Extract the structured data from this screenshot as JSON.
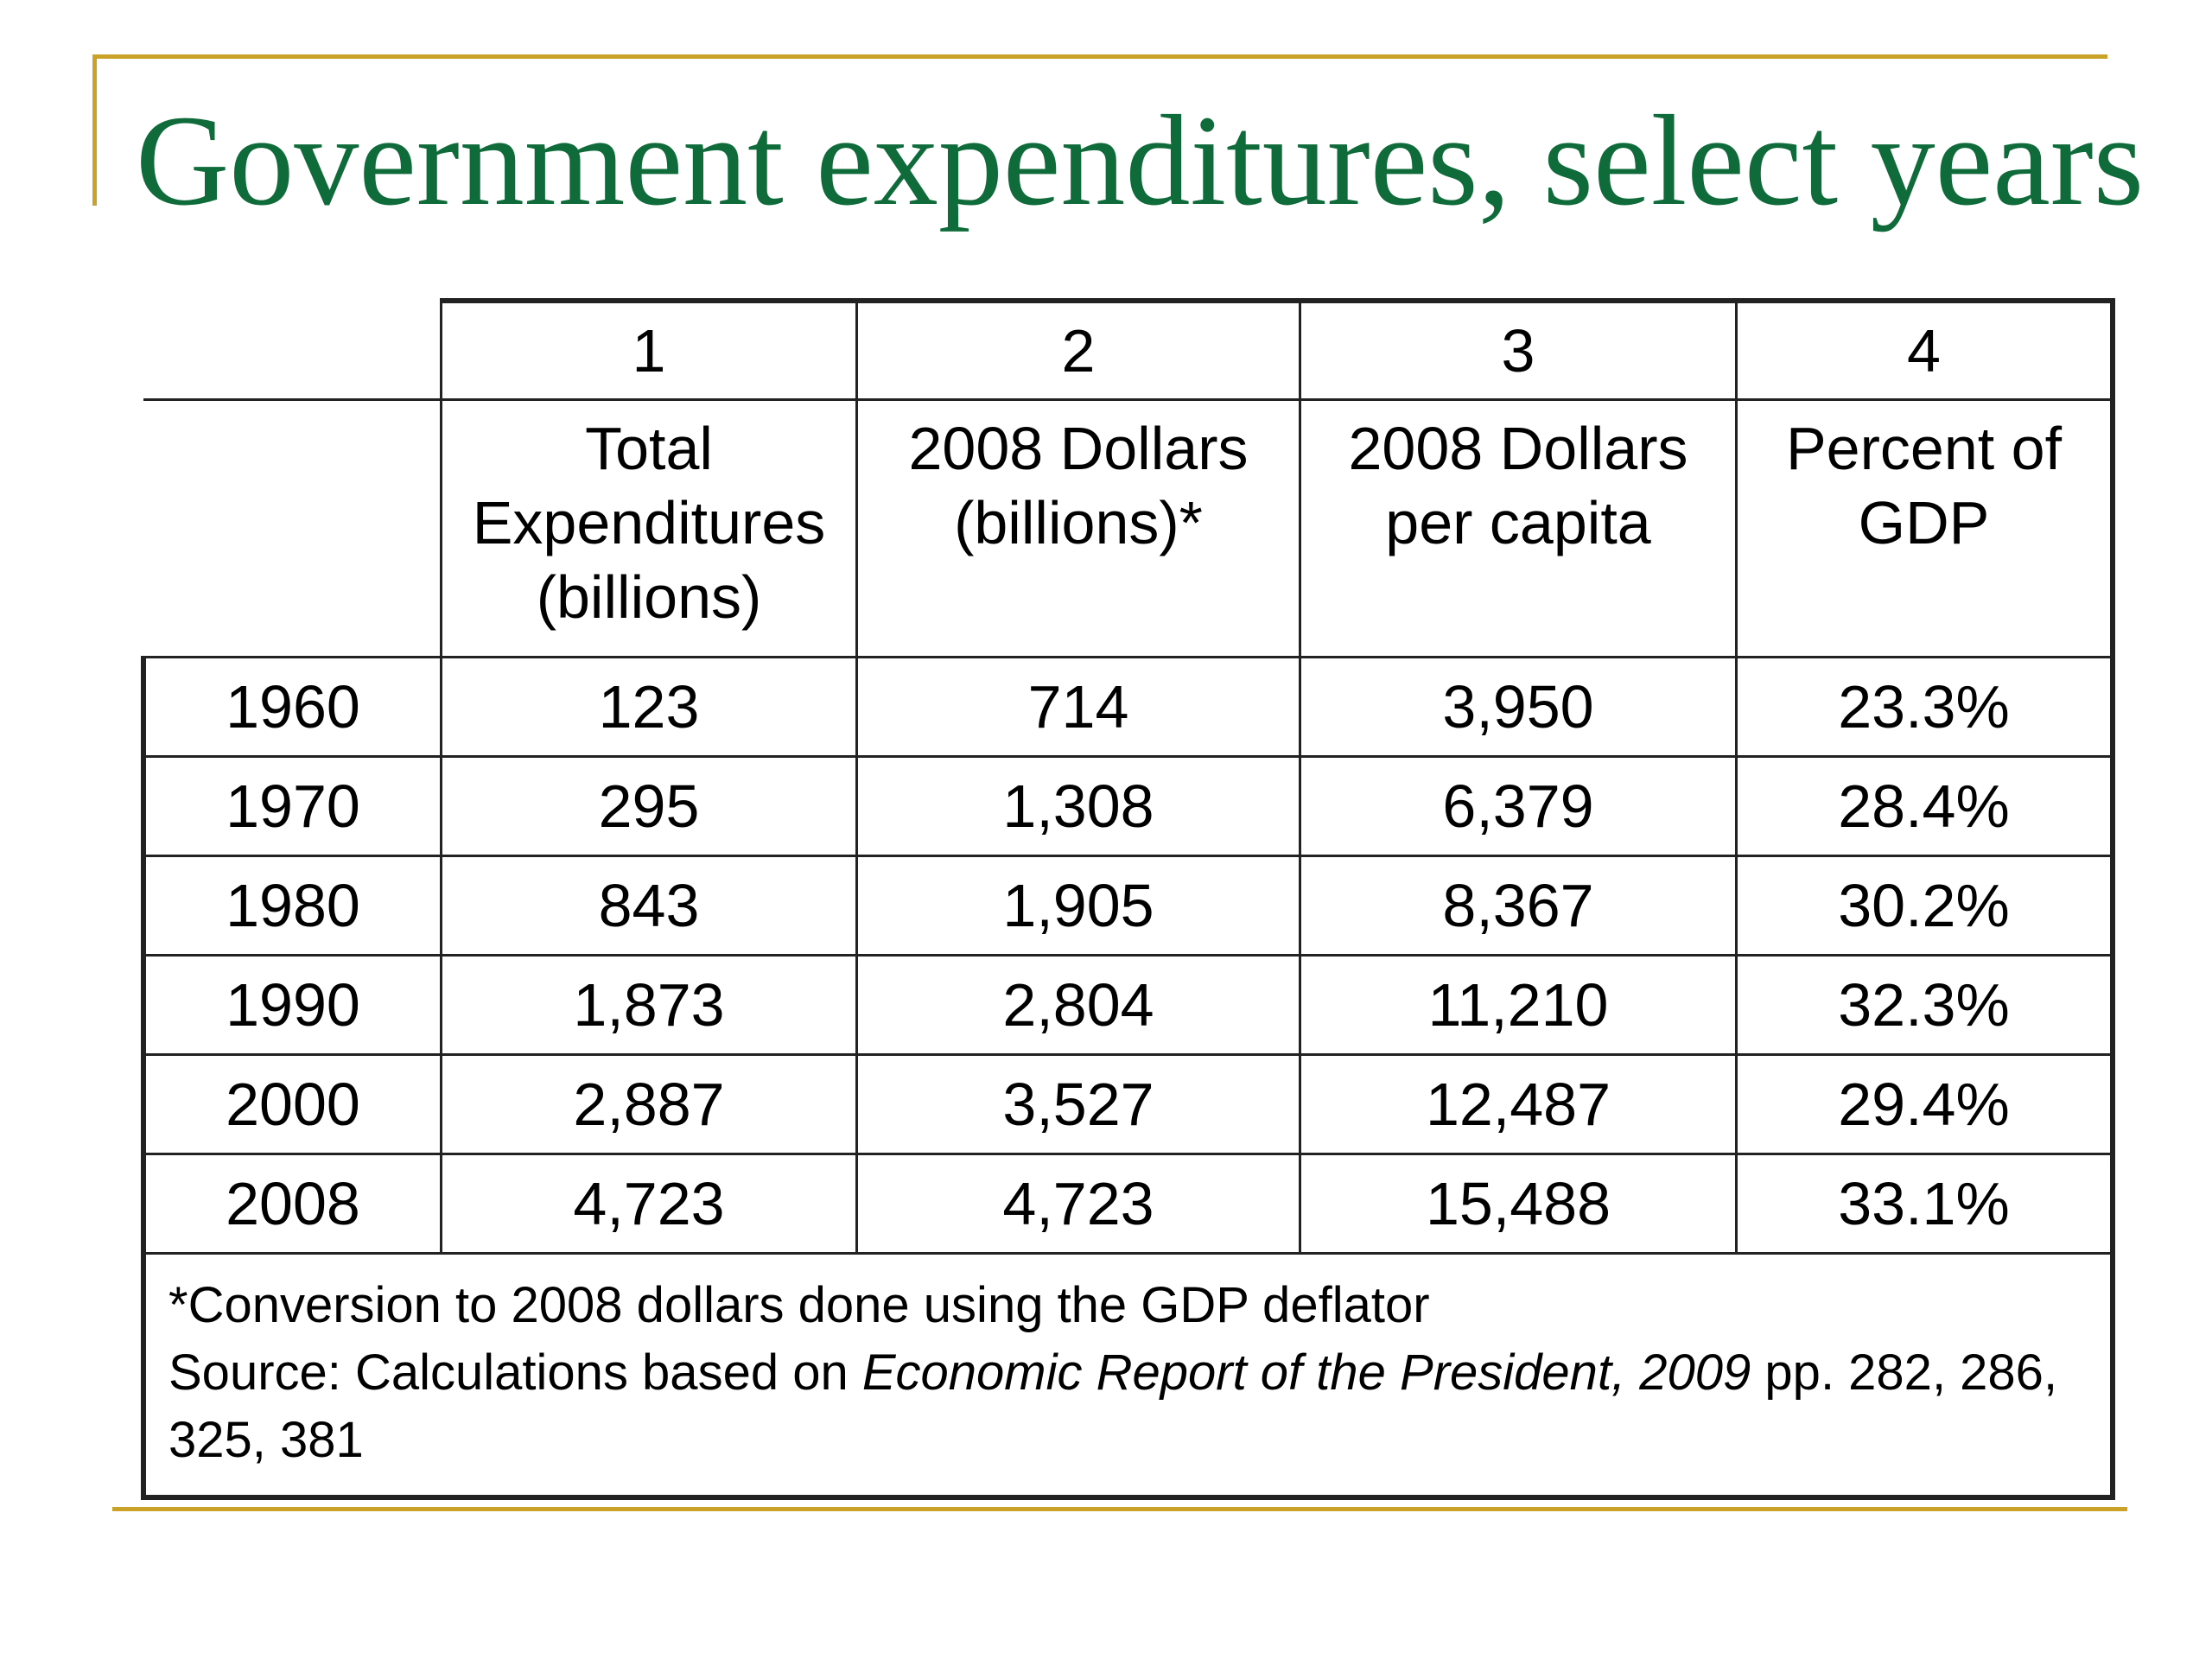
{
  "slide": {
    "title": "Government expenditures, select years"
  },
  "table": {
    "column_numbers": [
      "1",
      "2",
      "3",
      "4"
    ],
    "column_labels": [
      [
        "Total",
        "Expenditures",
        "(billions)"
      ],
      [
        "2008 Dollars",
        "(billions)*"
      ],
      [
        "2008 Dollars",
        "per capita"
      ],
      [
        "Percent of",
        "GDP"
      ]
    ],
    "rows": [
      {
        "year": "1960",
        "total": "123",
        "dollars_2008": "714",
        "per_capita": "3,950",
        "pct_gdp": "23.3%"
      },
      {
        "year": "1970",
        "total": "295",
        "dollars_2008": "1,308",
        "per_capita": "6,379",
        "pct_gdp": "28.4%"
      },
      {
        "year": "1980",
        "total": "843",
        "dollars_2008": "1,905",
        "per_capita": "8,367",
        "pct_gdp": "30.2%"
      },
      {
        "year": "1990",
        "total": "1,873",
        "dollars_2008": "2,804",
        "per_capita": "11,210",
        "pct_gdp": "32.3%"
      },
      {
        "year": "2000",
        "total": "2,887",
        "dollars_2008": "3,527",
        "per_capita": "12,487",
        "pct_gdp": "29.4%"
      },
      {
        "year": "2008",
        "total": "4,723",
        "dollars_2008": "4,723",
        "per_capita": "15,488",
        "pct_gdp": "33.1%"
      }
    ],
    "footnote": {
      "conversion": "*Conversion to 2008 dollars done using the GDP deflator",
      "source_prefix": "Source: Calculations based on ",
      "source_title": "Economic Report of the President, 2009",
      "source_suffix": " pp. 282, 286, 325, 381"
    }
  },
  "colors": {
    "title": "#0f6b3a",
    "rule": "#c9a227",
    "border": "#222222"
  }
}
